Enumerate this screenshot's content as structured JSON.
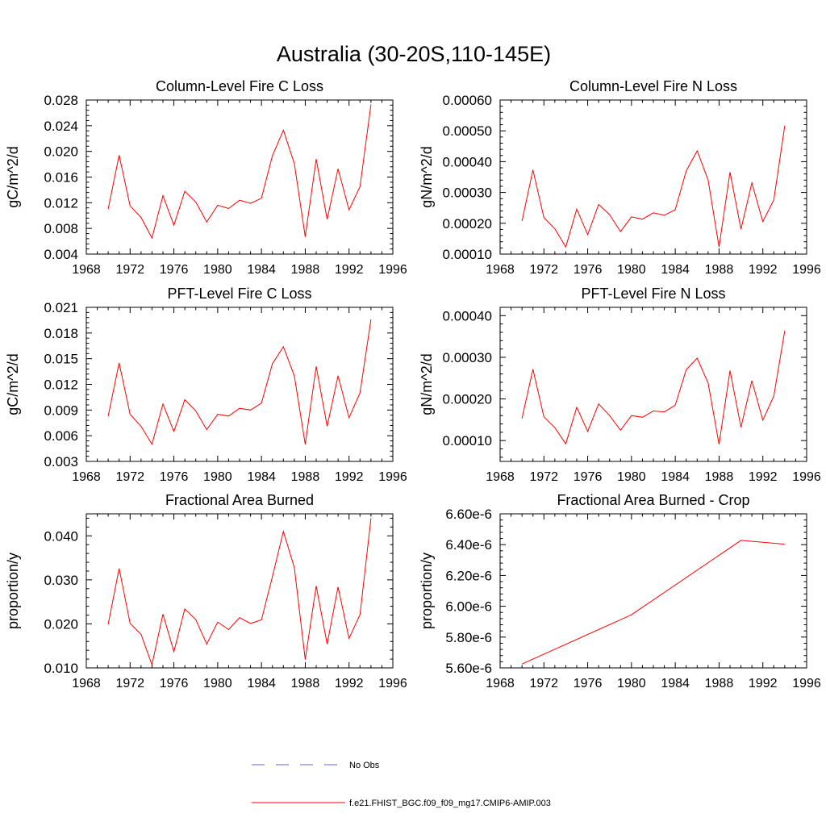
{
  "figure_title": "Australia (30-20S,110-145E)",
  "legend": {
    "obs_label": "No Obs",
    "obs_color": "#6666cc",
    "model_label": "f.e21.FHIST_BGC.f09_f09_mg17.CMIP6-AMIP.003",
    "model_color": "#ff0000"
  },
  "chart_data": [
    {
      "type": "line",
      "title": "Column-Level Fire C Loss",
      "ylabel": "gC/m^2/d",
      "xlim": [
        1968,
        1996
      ],
      "x_ticks": [
        "1968",
        "1972",
        "1976",
        "1980",
        "1984",
        "1988",
        "1992",
        "1996"
      ],
      "ylim": [
        0.004,
        0.028
      ],
      "y_ticks": [
        "0.004",
        "0.008",
        "0.012",
        "0.016",
        "0.020",
        "0.024",
        "0.028"
      ],
      "series": [
        {
          "name": "f.e21.FHIST_BGC.f09_f09_mg17.CMIP6-AMIP.003",
          "color": "#ff0000",
          "x": [
            1970,
            1971,
            1972,
            1973,
            1974,
            1975,
            1976,
            1977,
            1978,
            1979,
            1980,
            1981,
            1982,
            1983,
            1984,
            1985,
            1986,
            1987,
            1988,
            1989,
            1990,
            1991,
            1992,
            1993,
            1994
          ],
          "y": [
            0.011,
            0.0194,
            0.0115,
            0.0097,
            0.0065,
            0.0131,
            0.0085,
            0.0138,
            0.0121,
            0.009,
            0.0116,
            0.0111,
            0.0124,
            0.0119,
            0.0127,
            0.0193,
            0.0233,
            0.0181,
            0.0067,
            0.0188,
            0.0094,
            0.0173,
            0.0109,
            0.0145,
            0.0273
          ]
        }
      ]
    },
    {
      "type": "line",
      "title": "Column-Level Fire N Loss",
      "ylabel": "gN/m^2/d",
      "xlim": [
        1968,
        1996
      ],
      "x_ticks": [
        "1968",
        "1972",
        "1976",
        "1980",
        "1984",
        "1988",
        "1992",
        "1996"
      ],
      "ylim": [
        0.0001,
        0.0006
      ],
      "y_ticks": [
        "0.00010",
        "0.00020",
        "0.00030",
        "0.00040",
        "0.00050",
        "0.00060"
      ],
      "series": [
        {
          "name": "f.e21.FHIST_BGC.f09_f09_mg17.CMIP6-AMIP.003",
          "color": "#ff0000",
          "x": [
            1970,
            1971,
            1972,
            1973,
            1974,
            1975,
            1976,
            1977,
            1978,
            1979,
            1980,
            1981,
            1982,
            1983,
            1984,
            1985,
            1986,
            1987,
            1988,
            1989,
            1990,
            1991,
            1992,
            1993,
            1994
          ],
          "y": [
            0.000207,
            0.000373,
            0.000218,
            0.000182,
            0.000123,
            0.000246,
            0.000163,
            0.000261,
            0.000228,
            0.000173,
            0.000221,
            0.000213,
            0.000234,
            0.000226,
            0.000244,
            0.00037,
            0.000435,
            0.00034,
            0.000123,
            0.000366,
            0.000181,
            0.000331,
            0.000205,
            0.000276,
            0.000517
          ]
        }
      ]
    },
    {
      "type": "line",
      "title": "PFT-Level Fire C Loss",
      "ylabel": "gC/m^2/d",
      "xlim": [
        1968,
        1996
      ],
      "x_ticks": [
        "1968",
        "1972",
        "1976",
        "1980",
        "1984",
        "1988",
        "1992",
        "1996"
      ],
      "ylim": [
        0.003,
        0.021
      ],
      "y_ticks": [
        "0.003",
        "0.006",
        "0.009",
        "0.012",
        "0.015",
        "0.018",
        "0.021"
      ],
      "series": [
        {
          "name": "f.e21.FHIST_BGC.f09_f09_mg17.CMIP6-AMIP.003",
          "color": "#ff0000",
          "x": [
            1970,
            1971,
            1972,
            1973,
            1974,
            1975,
            1976,
            1977,
            1978,
            1979,
            1980,
            1981,
            1982,
            1983,
            1984,
            1985,
            1986,
            1987,
            1988,
            1989,
            1990,
            1991,
            1992,
            1993,
            1994
          ],
          "y": [
            0.0083,
            0.0145,
            0.0085,
            0.0071,
            0.005,
            0.0097,
            0.0065,
            0.0102,
            0.0089,
            0.0067,
            0.0085,
            0.0083,
            0.0092,
            0.009,
            0.0098,
            0.0144,
            0.0164,
            0.013,
            0.005,
            0.0141,
            0.0071,
            0.013,
            0.0081,
            0.011,
            0.0196
          ]
        }
      ]
    },
    {
      "type": "line",
      "title": "PFT-Level Fire N Loss",
      "ylabel": "gN/m^2/d",
      "xlim": [
        1968,
        1996
      ],
      "x_ticks": [
        "1968",
        "1972",
        "1976",
        "1980",
        "1984",
        "1988",
        "1992",
        "1996"
      ],
      "ylim": [
        5e-05,
        0.00042
      ],
      "y_ticks": [
        "0.00010",
        "0.00020",
        "0.00030",
        "0.00040"
      ],
      "series": [
        {
          "name": "f.e21.FHIST_BGC.f09_f09_mg17.CMIP6-AMIP.003",
          "color": "#ff0000",
          "x": [
            1970,
            1971,
            1972,
            1973,
            1974,
            1975,
            1976,
            1977,
            1978,
            1979,
            1980,
            1981,
            1982,
            1983,
            1984,
            1985,
            1986,
            1987,
            1988,
            1989,
            1990,
            1991,
            1992,
            1993,
            1994
          ],
          "y": [
            0.000153,
            0.000271,
            0.000157,
            0.000131,
            9.2e-05,
            0.00018,
            0.000122,
            0.000188,
            0.00016,
            0.000125,
            0.00016,
            0.000156,
            0.000171,
            0.000169,
            0.000185,
            0.00027,
            0.000298,
            0.000238,
            9.1e-05,
            0.000268,
            0.000132,
            0.000244,
            0.000149,
            0.000207,
            0.000364
          ]
        }
      ]
    },
    {
      "type": "line",
      "title": "Fractional Area Burned",
      "ylabel": "proportion/y",
      "xlim": [
        1968,
        1996
      ],
      "x_ticks": [
        "1968",
        "1972",
        "1976",
        "1980",
        "1984",
        "1988",
        "1992",
        "1996"
      ],
      "ylim": [
        0.01,
        0.045
      ],
      "y_ticks": [
        "0.010",
        "0.020",
        "0.030",
        "0.040"
      ],
      "series": [
        {
          "name": "f.e21.FHIST_BGC.f09_f09_mg17.CMIP6-AMIP.003",
          "color": "#ff0000",
          "x": [
            1970,
            1971,
            1972,
            1973,
            1974,
            1975,
            1976,
            1977,
            1978,
            1979,
            1980,
            1981,
            1982,
            1983,
            1984,
            1985,
            1986,
            1987,
            1988,
            1989,
            1990,
            1991,
            1992,
            1993,
            1994
          ],
          "y": [
            0.0199,
            0.0326,
            0.0201,
            0.0176,
            0.0107,
            0.0222,
            0.0137,
            0.0234,
            0.021,
            0.0154,
            0.0204,
            0.0187,
            0.0214,
            0.0201,
            0.0209,
            0.0307,
            0.041,
            0.0328,
            0.0119,
            0.0286,
            0.0154,
            0.0284,
            0.0167,
            0.0221,
            0.044
          ]
        }
      ]
    },
    {
      "type": "line",
      "title": "Fractional Area Burned - Crop",
      "ylabel": "proportion/y",
      "xlim": [
        1968,
        1996
      ],
      "x_ticks": [
        "1968",
        "1972",
        "1976",
        "1980",
        "1984",
        "1988",
        "1992",
        "1996"
      ],
      "ylim": [
        5.6e-06,
        6.6e-06
      ],
      "y_ticks": [
        "5.60e-6",
        "5.80e-6",
        "6.00e-6",
        "6.20e-6",
        "6.40e-6",
        "6.60e-6"
      ],
      "series": [
        {
          "name": "f.e21.FHIST_BGC.f09_f09_mg17.CMIP6-AMIP.003",
          "color": "#ff0000",
          "x": [
            1970,
            1980,
            1990,
            1994
          ],
          "y": [
            5.625e-06,
            5.945e-06,
            6.428e-06,
            6.403e-06
          ]
        }
      ]
    }
  ]
}
